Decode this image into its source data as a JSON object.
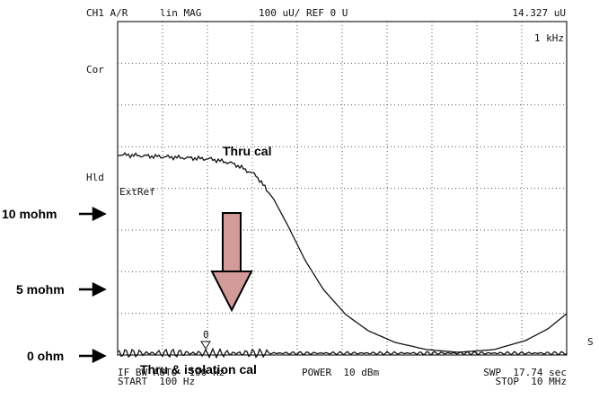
{
  "header": {
    "channel": "CH1 A/R",
    "format": "lin MAG",
    "scale": "100 uU/ REF 0 U",
    "marker_value": "14.327 uU",
    "marker_freq": "1 kHz"
  },
  "status": {
    "cor": "Cor",
    "hld": "Hld",
    "extref": "ExtRef",
    "marker": "0",
    "side": "S"
  },
  "annotations": {
    "ten_mohm": "10 mohm",
    "five_mohm": "5 mohm",
    "zero_ohm": "0 ohm",
    "thru_cal": "Thru cal",
    "thru_iso_cal": "Thru & isolation cal"
  },
  "footer": {
    "ifbw": "IF BW AUTO  100 Hz",
    "power": "POWER  10 dBm",
    "swp": "SWP  17.74 sec",
    "start": "START  100 Hz",
    "stop": "STOP  10 MHz"
  }
}
